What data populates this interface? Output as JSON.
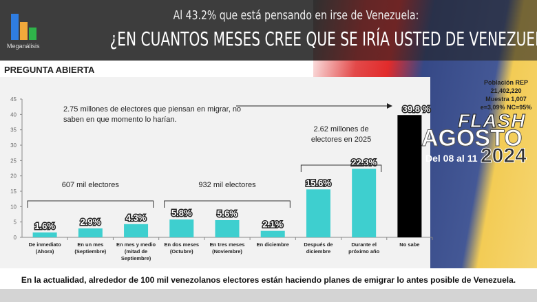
{
  "header": {
    "subtitle": "Al 43.2% que está pensando en irse de Venezuela:",
    "title": "¿EN CUANTOS MESES CREE QUE SE IRÍA USTED DE VENEZUELA?",
    "logo": "Meganálisis"
  },
  "section_label": "PREGUNTA ABIERTA",
  "info": {
    "line1": "Población REP",
    "line2": "21,402,220",
    "line3": "Muestra 1,007",
    "line4": "e=3,09%  NC=95%"
  },
  "brand": {
    "flash": "FLASH",
    "month": "AGOSTO",
    "dates": "Del 08 al 11",
    "year": "2024"
  },
  "caption": "En la actualidad, alrededor de 100 mil venezolanos electores están haciendo planes de emigrar lo antes posible de Venezuela.",
  "chart_data": {
    "type": "bar",
    "categories": [
      [
        "De inmediato",
        "(Ahora)"
      ],
      [
        "En un mes",
        "(Septiembre)"
      ],
      [
        "En mes y medio",
        "(mitad de",
        "Septiembre)"
      ],
      [
        "En dos meses",
        "(Octubre)"
      ],
      [
        "En tres meses",
        "(Noviembre)"
      ],
      [
        "En diciembre"
      ],
      [
        "Después de",
        "diciembre"
      ],
      [
        "Durante el",
        "próximo año"
      ],
      [
        "No sabe"
      ]
    ],
    "values": [
      1.6,
      2.9,
      4.3,
      5.8,
      5.6,
      2.1,
      15.6,
      22.3,
      39.8
    ],
    "labels": [
      "1.6%",
      "2.9%",
      "4.3%",
      "5.8%",
      "5.6%",
      "2.1%",
      "15.6%",
      "22.3%",
      "39.8 %"
    ],
    "colors": [
      "#3ecfcf",
      "#3ecfcf",
      "#3ecfcf",
      "#3ecfcf",
      "#3ecfcf",
      "#3ecfcf",
      "#3ecfcf",
      "#3ecfcf",
      "#000000"
    ],
    "ylim": [
      0,
      45
    ],
    "yticks": [
      0,
      5,
      10,
      15,
      20,
      25,
      30,
      35,
      40,
      45
    ],
    "annotations": [
      {
        "text": "607 mil electores",
        "from": 0,
        "to": 2
      },
      {
        "text": "932 mil electores",
        "from": 3,
        "to": 5
      },
      {
        "text": [
          "2.62 millones de",
          "electores en 2025"
        ],
        "from": 6,
        "to": 7
      },
      {
        "text": [
          "2.75 millones de electores que piensan en migrar, no",
          "saben en que momento lo harían."
        ],
        "target": 8
      }
    ]
  }
}
